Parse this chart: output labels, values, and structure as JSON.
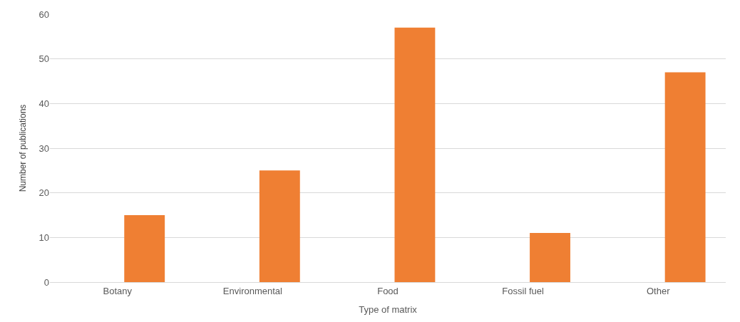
{
  "chart_data": {
    "type": "bar",
    "xlabel": "Type of matrix",
    "ylabel": "Number of publications",
    "categories": [
      "Botany",
      "Environmental",
      "Food",
      "Fossil fuel",
      "Other"
    ],
    "values": [
      15,
      25,
      57,
      11,
      47
    ],
    "color": "#ef7f33",
    "ylim": [
      0,
      60
    ],
    "yticks": [
      0,
      10,
      20,
      30,
      40,
      50,
      60
    ],
    "grid": "y",
    "legend": false
  }
}
